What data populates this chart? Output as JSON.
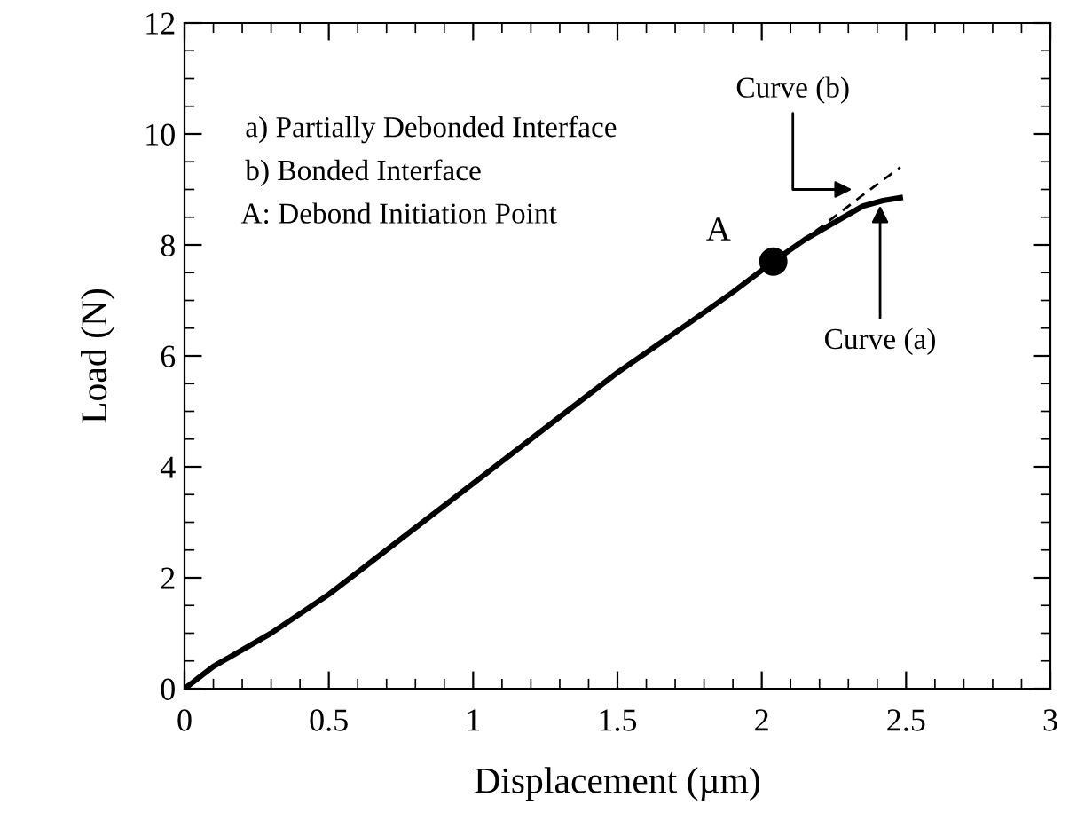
{
  "chart_data": {
    "type": "line",
    "xlabel": "Displacement (µm)",
    "ylabel": "Load (N)",
    "xlim": [
      0,
      3
    ],
    "ylim": [
      0,
      12
    ],
    "xticks": [
      0,
      0.5,
      1,
      1.5,
      2,
      2.5,
      3
    ],
    "yticks": [
      0,
      2,
      4,
      6,
      8,
      10,
      12
    ],
    "grid": false,
    "legend": false,
    "marker": "none",
    "line_style": "solid",
    "series": [
      {
        "color": "#000000",
        "x": [
          0,
          0.05,
          0.1,
          0.3,
          0.5,
          0.75,
          1,
          1.25,
          1.5,
          1.75,
          1.9,
          2.04,
          2.15,
          2.25,
          2.35,
          2.42,
          2.48
        ],
        "values": [
          0,
          0.2,
          0.4,
          1.0,
          1.7,
          2.7,
          3.7,
          4.7,
          5.7,
          6.6,
          7.15,
          7.7,
          8.1,
          8.4,
          8.7,
          8.8,
          8.85
        ]
      },
      {
        "color": "#000000",
        "x": [
          2.04,
          2.2,
          2.35,
          2.48
        ],
        "values": [
          7.7,
          8.3,
          8.9,
          9.4
        ],
        "line_style": "dashed"
      },
      {
        "type": "scatter",
        "color": "#000000",
        "marker": "circle",
        "x": [
          2.04
        ],
        "values": [
          7.7
        ]
      }
    ],
    "annotations": [
      "a) Partially Debonded Interface",
      "b) Bonded Interface",
      "A: Debond Initiation Point",
      {
        "text": "A",
        "x": 2.04,
        "y": 7.7
      },
      {
        "text": "Curve (b)",
        "x": 2.33,
        "y": 9.0
      },
      {
        "text": "Curve (a)",
        "x": 2.41,
        "y": 8.8
      }
    ]
  }
}
